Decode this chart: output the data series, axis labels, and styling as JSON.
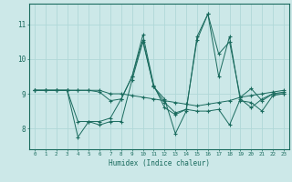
{
  "title": "",
  "xlabel": "Humidex (Indice chaleur)",
  "bg_color": "#cce8e8",
  "grid_color": "#b0d8d8",
  "line_color": "#1a6b5e",
  "xlim": [
    -0.5,
    23.5
  ],
  "ylim": [
    7.4,
    11.6
  ],
  "yticks": [
    8,
    9,
    10,
    11
  ],
  "xticks": [
    0,
    1,
    2,
    3,
    4,
    5,
    6,
    7,
    8,
    9,
    10,
    11,
    12,
    13,
    14,
    15,
    16,
    17,
    18,
    19,
    20,
    21,
    22,
    23
  ],
  "series": [
    [
      9.1,
      9.1,
      9.1,
      9.1,
      9.1,
      9.1,
      9.05,
      8.8,
      8.85,
      9.5,
      10.7,
      9.25,
      8.6,
      8.4,
      8.55,
      8.5,
      8.5,
      8.55,
      8.1,
      8.85,
      8.6,
      8.85,
      9.0,
      9.0
    ],
    [
      9.1,
      9.1,
      9.1,
      9.1,
      7.75,
      8.2,
      8.1,
      8.2,
      8.2,
      9.4,
      10.5,
      9.2,
      8.85,
      7.85,
      8.5,
      10.65,
      11.3,
      10.15,
      10.5,
      8.9,
      9.15,
      8.8,
      9.0,
      9.05
    ],
    [
      9.1,
      9.1,
      9.1,
      9.1,
      8.2,
      8.2,
      8.2,
      8.3,
      8.85,
      9.5,
      10.55,
      9.2,
      8.75,
      8.45,
      8.55,
      10.55,
      11.3,
      9.5,
      10.65,
      8.8,
      8.75,
      8.5,
      8.95,
      9.0
    ],
    [
      9.1,
      9.1,
      9.1,
      9.1,
      9.1,
      9.1,
      9.1,
      9.0,
      9.0,
      8.95,
      8.9,
      8.85,
      8.8,
      8.75,
      8.7,
      8.65,
      8.7,
      8.75,
      8.8,
      8.9,
      8.95,
      9.0,
      9.05,
      9.1
    ]
  ]
}
